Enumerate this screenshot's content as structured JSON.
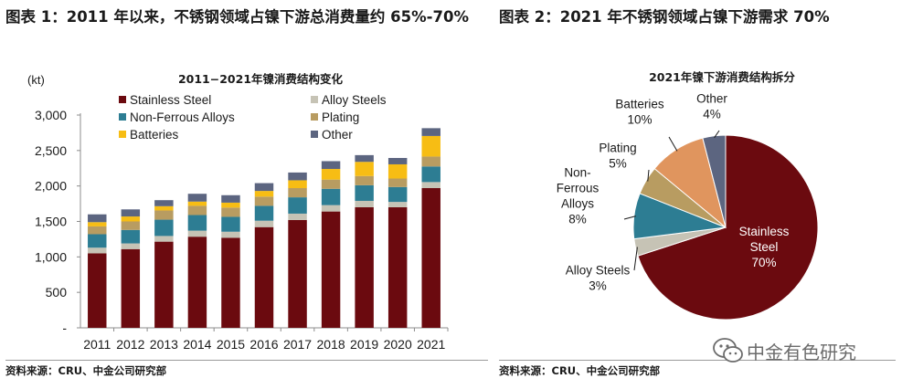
{
  "left_figure": {
    "title": "图表 1：2011 年以来，不锈钢领域占镍下游总消费量约 65%-70%",
    "source": "资料来源：CRU、中金公司研究部"
  },
  "right_figure": {
    "title": "图表 2：2021 年不锈钢领域占镍下游需求 70%",
    "source": "资料来源：CRU、中金公司研究部"
  },
  "watermark": {
    "text": "中金有色研究",
    "icon": "wechat-icon"
  },
  "chart_data": [
    {
      "type": "bar",
      "stacked": true,
      "title": "2011−2021年镍消费结构变化",
      "unit_label": "(kt)",
      "xlabel": "",
      "ylabel": "",
      "ylim": [
        0,
        3000
      ],
      "yticks": [
        0,
        500,
        1000,
        1500,
        2000,
        2500,
        3000
      ],
      "ytick_labels": [
        "-",
        "500",
        "1,000",
        "1,500",
        "2,000",
        "2,500",
        "3,000"
      ],
      "legend_position": "top",
      "grid": false,
      "categories": [
        "2011",
        "2012",
        "2013",
        "2014",
        "2015",
        "2016",
        "2017",
        "2018",
        "2019",
        "2020",
        "2021"
      ],
      "series": [
        {
          "name": "Stainless Steel",
          "color": "#6b0a0f",
          "values": [
            1050,
            1110,
            1215,
            1285,
            1270,
            1420,
            1520,
            1640,
            1700,
            1700,
            1970
          ]
        },
        {
          "name": "Alloy Steels",
          "color": "#c6c3b5",
          "values": [
            80,
            80,
            80,
            85,
            85,
            90,
            90,
            90,
            90,
            75,
            85
          ]
        },
        {
          "name": "Non-Ferrous Alloys",
          "color": "#2d7d93",
          "values": [
            190,
            190,
            230,
            220,
            210,
            210,
            230,
            230,
            220,
            210,
            220
          ]
        },
        {
          "name": "Plating",
          "color": "#b89c61",
          "values": [
            110,
            120,
            130,
            130,
            130,
            130,
            130,
            130,
            130,
            120,
            140
          ]
        },
        {
          "name": "Batteries",
          "color": "#f7bd14",
          "values": [
            60,
            70,
            60,
            60,
            70,
            80,
            110,
            150,
            200,
            200,
            290
          ]
        },
        {
          "name": "Other",
          "color": "#5c6580",
          "values": [
            110,
            100,
            85,
            110,
            105,
            110,
            110,
            110,
            95,
            90,
            110
          ]
        }
      ]
    },
    {
      "type": "pie",
      "title": "2021年镍下游消费结构拆分",
      "start_angle_deg": 0,
      "direction": "clockwise",
      "slices": [
        {
          "name": "Stainless Steel",
          "display_label": [
            "Stainless",
            "Steel",
            "70%"
          ],
          "value": 70,
          "color": "#6b0a0f"
        },
        {
          "name": "Alloy Steels",
          "display_label": [
            "Alloy Steels",
            "3%"
          ],
          "value": 3,
          "color": "#c6c3b5"
        },
        {
          "name": "Non-Ferrous Alloys",
          "display_label": [
            "Non-",
            "Ferrous",
            "Alloys",
            "8%"
          ],
          "value": 8,
          "color": "#2d7d93"
        },
        {
          "name": "Plating",
          "display_label": [
            "Plating",
            "5%"
          ],
          "value": 5,
          "color": "#b89c61"
        },
        {
          "name": "Batteries",
          "display_label": [
            "Batteries",
            "10%"
          ],
          "value": 10,
          "color": "#e0955e"
        },
        {
          "name": "Other",
          "display_label": [
            "Other",
            "4%"
          ],
          "value": 4,
          "color": "#5c6580"
        }
      ]
    }
  ]
}
